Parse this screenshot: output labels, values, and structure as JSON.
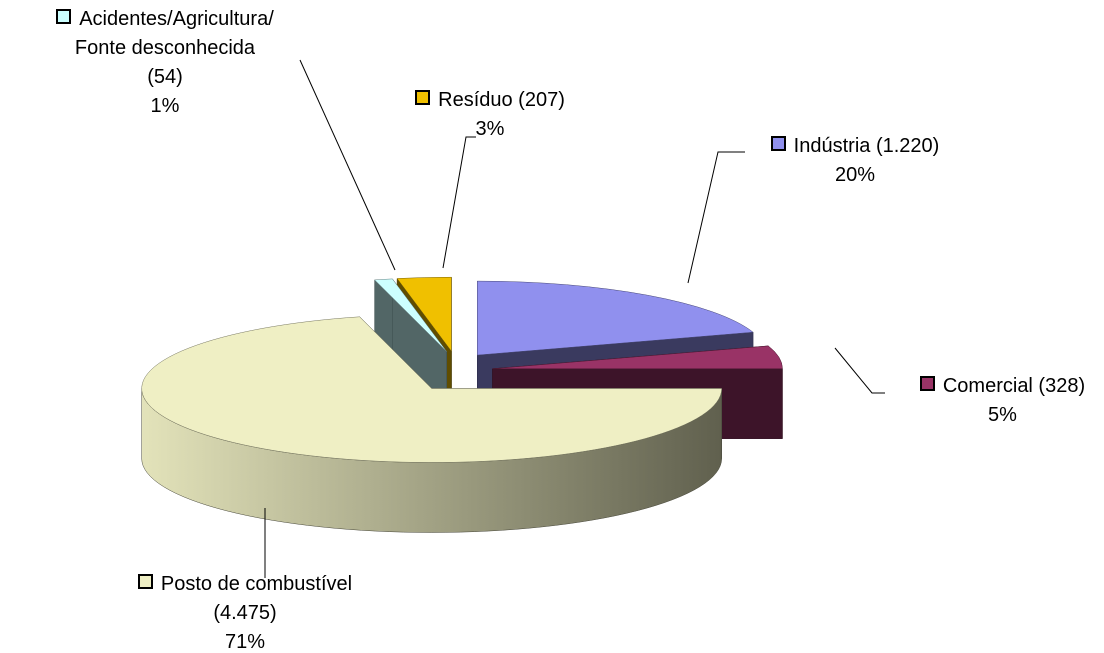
{
  "chart_data": {
    "type": "pie",
    "categories": [
      "Indústria (1.220)",
      "Comercial (328)",
      "Posto de combustível\n(4.475)",
      "Acidentes/Agricultura/\nFonte desconhecida\n(54)",
      "Resíduo (207)"
    ],
    "values": [
      20,
      5,
      71,
      1,
      3
    ],
    "value_labels": [
      "20%",
      "5%",
      "71%",
      "1%",
      "3%"
    ],
    "colors": [
      "#9090ee",
      "#993366",
      "#efefc4",
      "#ccffff",
      "#f0c000"
    ]
  }
}
